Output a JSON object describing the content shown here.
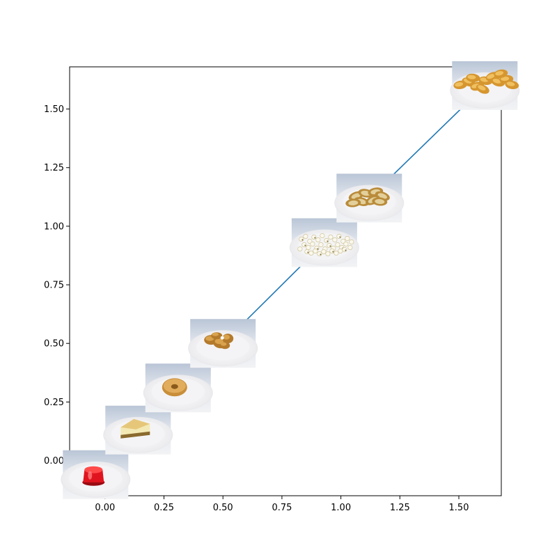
{
  "chart_data": {
    "type": "line",
    "title": "",
    "xlabel": "",
    "ylabel": "",
    "xlim": [
      -0.15,
      1.68
    ],
    "ylim": [
      -0.15,
      1.68
    ],
    "grid": false,
    "legend": "none",
    "line_color": "#1f77b4",
    "x_ticks": [
      {
        "value": 0.0,
        "label": "0.00"
      },
      {
        "value": 0.25,
        "label": "0.25"
      },
      {
        "value": 0.5,
        "label": "0.50"
      },
      {
        "value": 0.75,
        "label": "0.75"
      },
      {
        "value": 1.0,
        "label": "1.00"
      },
      {
        "value": 1.25,
        "label": "1.25"
      },
      {
        "value": 1.5,
        "label": "1.50"
      }
    ],
    "y_ticks": [
      {
        "value": 0.0,
        "label": "0.00"
      },
      {
        "value": 0.25,
        "label": "0.25"
      },
      {
        "value": 0.5,
        "label": "0.50"
      },
      {
        "value": 0.75,
        "label": "0.75"
      },
      {
        "value": 1.0,
        "label": "1.00"
      },
      {
        "value": 1.25,
        "label": "1.25"
      },
      {
        "value": 1.5,
        "label": "1.50"
      }
    ],
    "points": [
      {
        "x": -0.04,
        "y": -0.06,
        "icon": "red-gelatin-icon"
      },
      {
        "x": 0.14,
        "y": 0.13,
        "icon": "cheesecake-icon"
      },
      {
        "x": 0.31,
        "y": 0.31,
        "icon": "donut-icon"
      },
      {
        "x": 0.5,
        "y": 0.5,
        "icon": "chicken-nuggets-icon"
      },
      {
        "x": 0.93,
        "y": 0.93,
        "icon": "popcorn-icon"
      },
      {
        "x": 1.12,
        "y": 1.12,
        "icon": "fried-slices-icon"
      },
      {
        "x": 1.61,
        "y": 1.6,
        "icon": "chips-icon"
      }
    ]
  }
}
